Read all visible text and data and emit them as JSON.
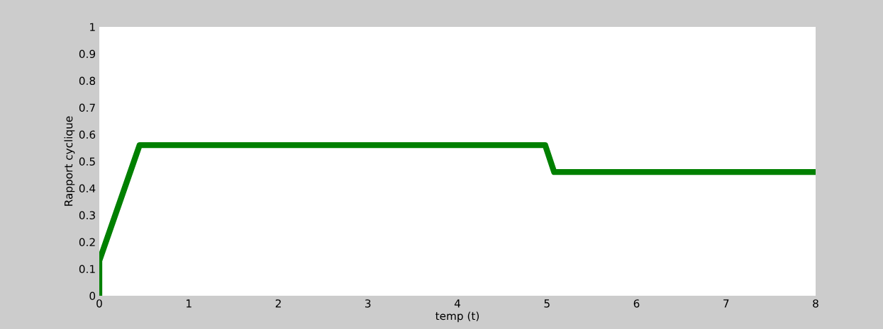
{
  "chart_data": {
    "type": "line",
    "xlabel": "temp (t)",
    "ylabel": "Rapport cyclique",
    "series": [
      {
        "color": "#008000",
        "x": [
          0,
          0,
          0.45,
          4.98,
          5.08,
          8
        ],
        "values": [
          0,
          0.13,
          0.56,
          0.56,
          0.46,
          0.46
        ]
      }
    ],
    "xlim": [
      0,
      8
    ],
    "xticks": [
      0,
      1,
      2,
      3,
      4,
      5,
      6,
      7,
      8
    ],
    "ylim": [
      0,
      1
    ],
    "yticks": [
      0,
      0.1,
      0.2,
      0.3,
      0.4,
      0.5,
      0.6,
      0.7,
      0.8,
      0.9,
      1
    ],
    "grid": false,
    "legend": false,
    "marker": "none",
    "line_style": "solid"
  }
}
